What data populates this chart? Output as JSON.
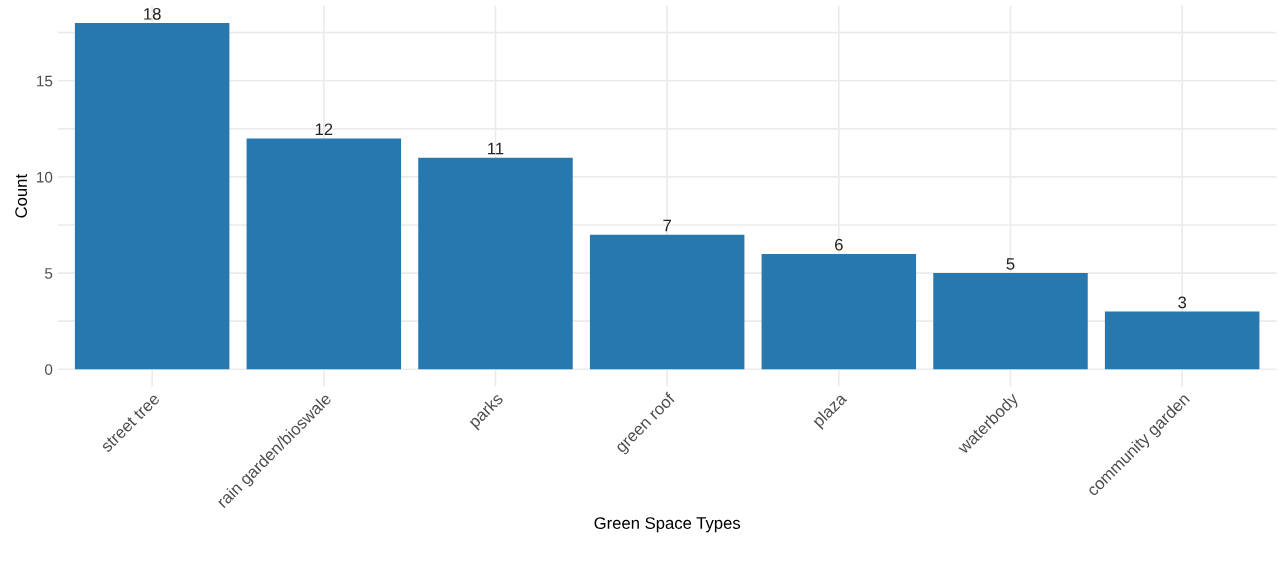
{
  "chart_data": {
    "type": "bar",
    "xlabel": "Green Space Types",
    "ylabel": "Count",
    "categories": [
      "street tree",
      "rain garden/bioswale",
      "parks",
      "green roof",
      "plaza",
      "waterbody",
      "community garden"
    ],
    "values": [
      18,
      12,
      11,
      7,
      6,
      5,
      3
    ],
    "color": "#2878b0",
    "data_labels": true,
    "grid": true,
    "ylim": [
      -0.9,
      18.9
    ],
    "yticks": [
      0,
      {
        "value": 2.5,
        "label": null
      },
      5,
      {
        "value": 7.5,
        "label": null
      },
      10,
      {
        "value": 12.5,
        "label": null
      },
      15,
      {
        "value": 17.5,
        "label": null
      }
    ]
  }
}
